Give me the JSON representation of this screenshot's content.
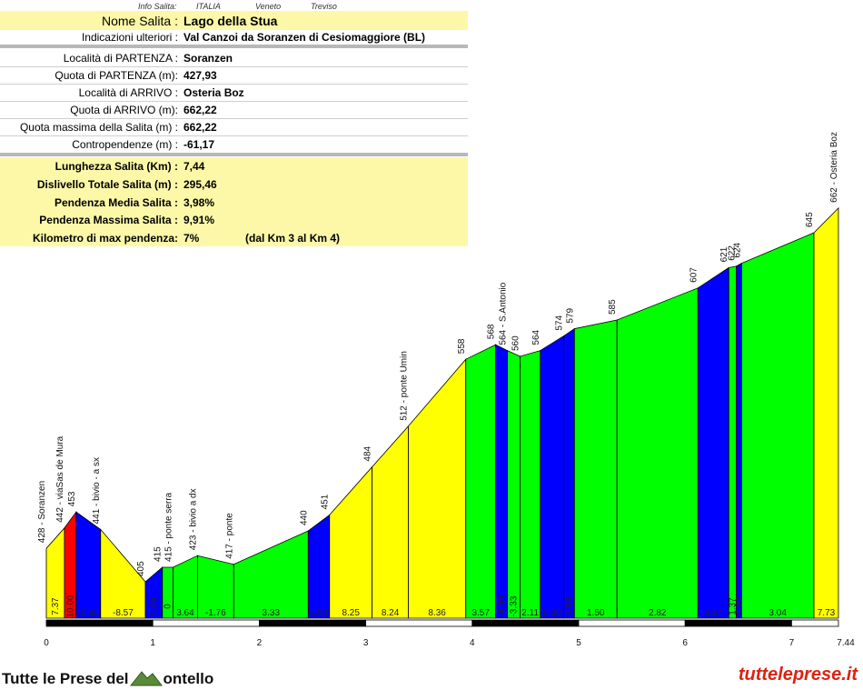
{
  "header": {
    "info_label": "Info Salita:",
    "country": "ITALIA",
    "region": "Veneto",
    "province": "Treviso"
  },
  "info": {
    "nome_label": "Nome Salita :",
    "nome_value": "Lago della Stua",
    "indicazioni_label": "Indicazioni ulteriori :",
    "indicazioni_value": "Val Canzoi da Soranzen di Cesiomaggiore (BL)",
    "localita_partenza_label": "Località di PARTENZA :",
    "localita_partenza_value": "Soranzen",
    "quota_partenza_label": "Quota di PARTENZA (m):",
    "quota_partenza_value": "427,93",
    "localita_arrivo_label": "Località di ARRIVO :",
    "localita_arrivo_value": "Osteria Boz",
    "quota_arrivo_label": "Quota di ARRIVO (m):",
    "quota_arrivo_value": "662,22",
    "quota_max_label": "Quota massima della Salita (m) :",
    "quota_max_value": "662,22",
    "contropendenze_label": "Contropendenze (m) :",
    "contropendenze_value": "-61,17",
    "lunghezza_label": "Lunghezza Salita (Km) :",
    "lunghezza_value": "7,44",
    "dislivello_label": "Dislivello Totale Salita (m) :",
    "dislivello_value": "295,46",
    "pend_media_label": "Pendenza Media Salita :",
    "pend_media_value": "3,98%",
    "pend_max_label": "Pendenza Massima Salita :",
    "pend_max_value": "9,91%",
    "km_max_label": "Kilometro di max pendenza:",
    "km_max_value": "7%",
    "km_max_note": "(dal Km 3 al Km 4)"
  },
  "chart_data": {
    "type": "area",
    "x_unit": "km",
    "y_unit": "m",
    "xlim": [
      0,
      7.44
    ],
    "x_ticks": [
      "0",
      "1",
      "2",
      "3",
      "4",
      "5",
      "6",
      "7",
      "7.44"
    ],
    "points": [
      {
        "km": 0.0,
        "alt": 428,
        "label": "428 - Soranzen"
      },
      {
        "km": 0.17,
        "alt": 442,
        "label": "442 - viaSas de Mura"
      },
      {
        "km": 0.28,
        "alt": 453,
        "label": "453"
      },
      {
        "km": 0.51,
        "alt": 441,
        "label": "441 - bivio - a sx"
      },
      {
        "km": 0.93,
        "alt": 405,
        "label": "405"
      },
      {
        "km": 1.09,
        "alt": 415,
        "label": "415"
      },
      {
        "km": 1.19,
        "alt": 415,
        "label": "415 - ponte serra"
      },
      {
        "km": 1.42,
        "alt": 423,
        "label": "423 - bivio a dx"
      },
      {
        "km": 1.76,
        "alt": 417,
        "label": "417 - ponte"
      },
      {
        "km": 2.46,
        "alt": 440,
        "label": "440"
      },
      {
        "km": 2.66,
        "alt": 451,
        "label": "451"
      },
      {
        "km": 3.06,
        "alt": 484,
        "label": "484"
      },
      {
        "km": 3.4,
        "alt": 512,
        "label": "512 - ponte Umin"
      },
      {
        "km": 3.94,
        "alt": 558,
        "label": "558"
      },
      {
        "km": 4.22,
        "alt": 568,
        "label": "568"
      },
      {
        "km": 4.33,
        "alt": 564,
        "label": "564 - S.Antonio"
      },
      {
        "km": 4.45,
        "alt": 560,
        "label": "560"
      },
      {
        "km": 4.64,
        "alt": 564,
        "label": "564"
      },
      {
        "km": 4.86,
        "alt": 574,
        "label": "574"
      },
      {
        "km": 4.96,
        "alt": 579,
        "label": "579"
      },
      {
        "km": 5.36,
        "alt": 585,
        "label": "585"
      },
      {
        "km": 6.12,
        "alt": 607,
        "label": "607"
      },
      {
        "km": 6.41,
        "alt": 621,
        "label": "621"
      },
      {
        "km": 6.48,
        "alt": 622,
        "label": "622"
      },
      {
        "km": 6.53,
        "alt": 624,
        "label": "624"
      },
      {
        "km": 7.21,
        "alt": 645,
        "label": "645"
      },
      {
        "km": 7.44,
        "alt": 662,
        "label": "662 - Osteria Boz"
      }
    ],
    "slopes": [
      "7.37",
      "10.00",
      "-2.45",
      "-8.57",
      "5.99",
      "0",
      "3.64",
      "-1.76",
      "3.33",
      "5.90",
      "8.25",
      "8.24",
      "8.36",
      "3.57",
      "-4.00",
      "-3.33",
      "2.11",
      "5.00",
      "4.90",
      "1.50",
      "2.82",
      "4.67",
      "1.37",
      "4.20",
      "3.04",
      "7.73"
    ],
    "slope_colors": [
      "#ffff00",
      "#ff0000",
      "#0000ff",
      "#ffff00",
      "#0000ff",
      "#00ff00",
      "#00ff00",
      "#00ff00",
      "#00ff00",
      "#0000ff",
      "#ffff00",
      "#ffff00",
      "#ffff00",
      "#00ff00",
      "#0000ff",
      "#00ff00",
      "#00ff00",
      "#0000ff",
      "#0000ff",
      "#00ff00",
      "#00ff00",
      "#0000ff",
      "#00ff00",
      "#0000ff",
      "#00ff00",
      "#ffff00"
    ]
  },
  "footer": {
    "left": "Tutte le Prese del",
    "left_suffix": "ontello",
    "right": "tutteleprese.it"
  }
}
